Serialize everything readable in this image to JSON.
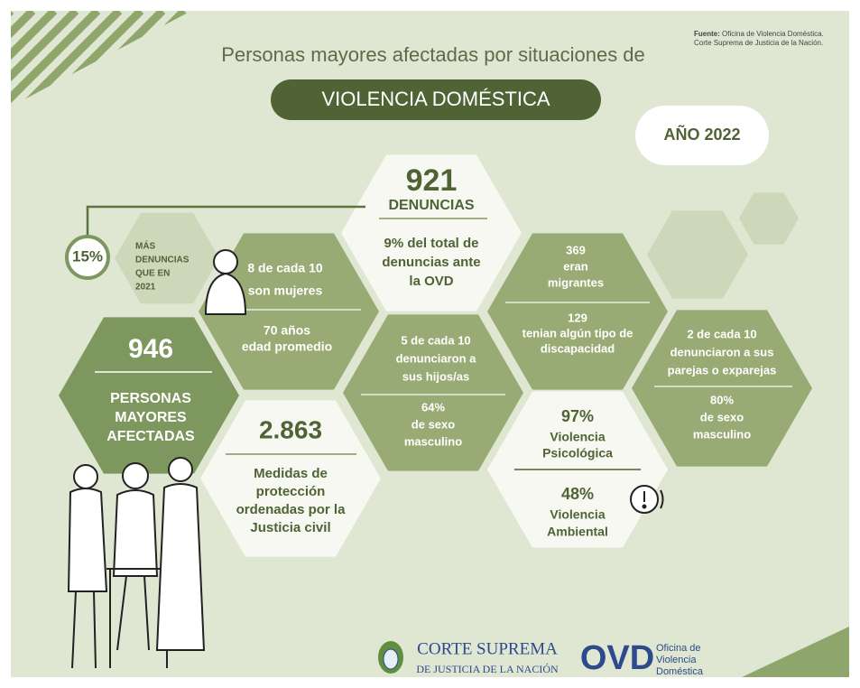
{
  "source": {
    "label": "Fuente:",
    "lines": [
      "Oficina de Violencia Doméstica.",
      "Corte Suprema de Justicia de la Nación."
    ]
  },
  "title": "Personas mayores afectadas por situaciones de",
  "title_highlight": "VIOLENCIA DOMÉSTICA",
  "year": "AÑO 2022",
  "complaints": {
    "value": "921",
    "label": "DENUNCIAS",
    "detail": [
      "9% del total de",
      "denuncias ante",
      "la OVD"
    ]
  },
  "increase": {
    "value": "15%",
    "label": [
      "MÁS",
      "DENUNCIAS",
      "QUE EN",
      "2021"
    ]
  },
  "women": [
    "8 de cada 10",
    "son mujeres"
  ],
  "age": [
    "70 años",
    "edad promedio"
  ],
  "people": {
    "value": "946",
    "label": [
      "PERSONAS",
      "MAYORES",
      "AFECTADAS"
    ]
  },
  "measures": {
    "value": "2.863",
    "label": [
      "Medidas de",
      "protección",
      "ordenadas por la",
      "Justicia civil"
    ]
  },
  "children": {
    "top": [
      "5 de cada 10",
      "denunciaron a",
      "sus hijos/as"
    ],
    "bottom": [
      "64%",
      "de sexo",
      "masculino"
    ]
  },
  "migrants": [
    "369",
    "eran",
    "migrantes"
  ],
  "disability": [
    "129",
    "tenian algún tipo de",
    "discapacidad"
  ],
  "partners": {
    "top": [
      "2 de cada 10",
      "denunciaron a sus",
      "parejas o exparejas"
    ],
    "bottom": [
      "80%",
      "de sexo",
      "masculino"
    ]
  },
  "violence": {
    "psychological": {
      "value": "97%",
      "label": [
        "Violencia",
        "Psicológica"
      ]
    },
    "environmental": {
      "value": "48%",
      "label": [
        "Violencia",
        "Ambiental"
      ]
    }
  },
  "footer": {
    "court": [
      "CORTE SUPREMA",
      "DE JUSTICIA DE LA NACIÓN"
    ],
    "office": {
      "acronym": "OVD",
      "name": [
        "Oficina de",
        "Violencia",
        "Doméstica"
      ]
    }
  }
}
